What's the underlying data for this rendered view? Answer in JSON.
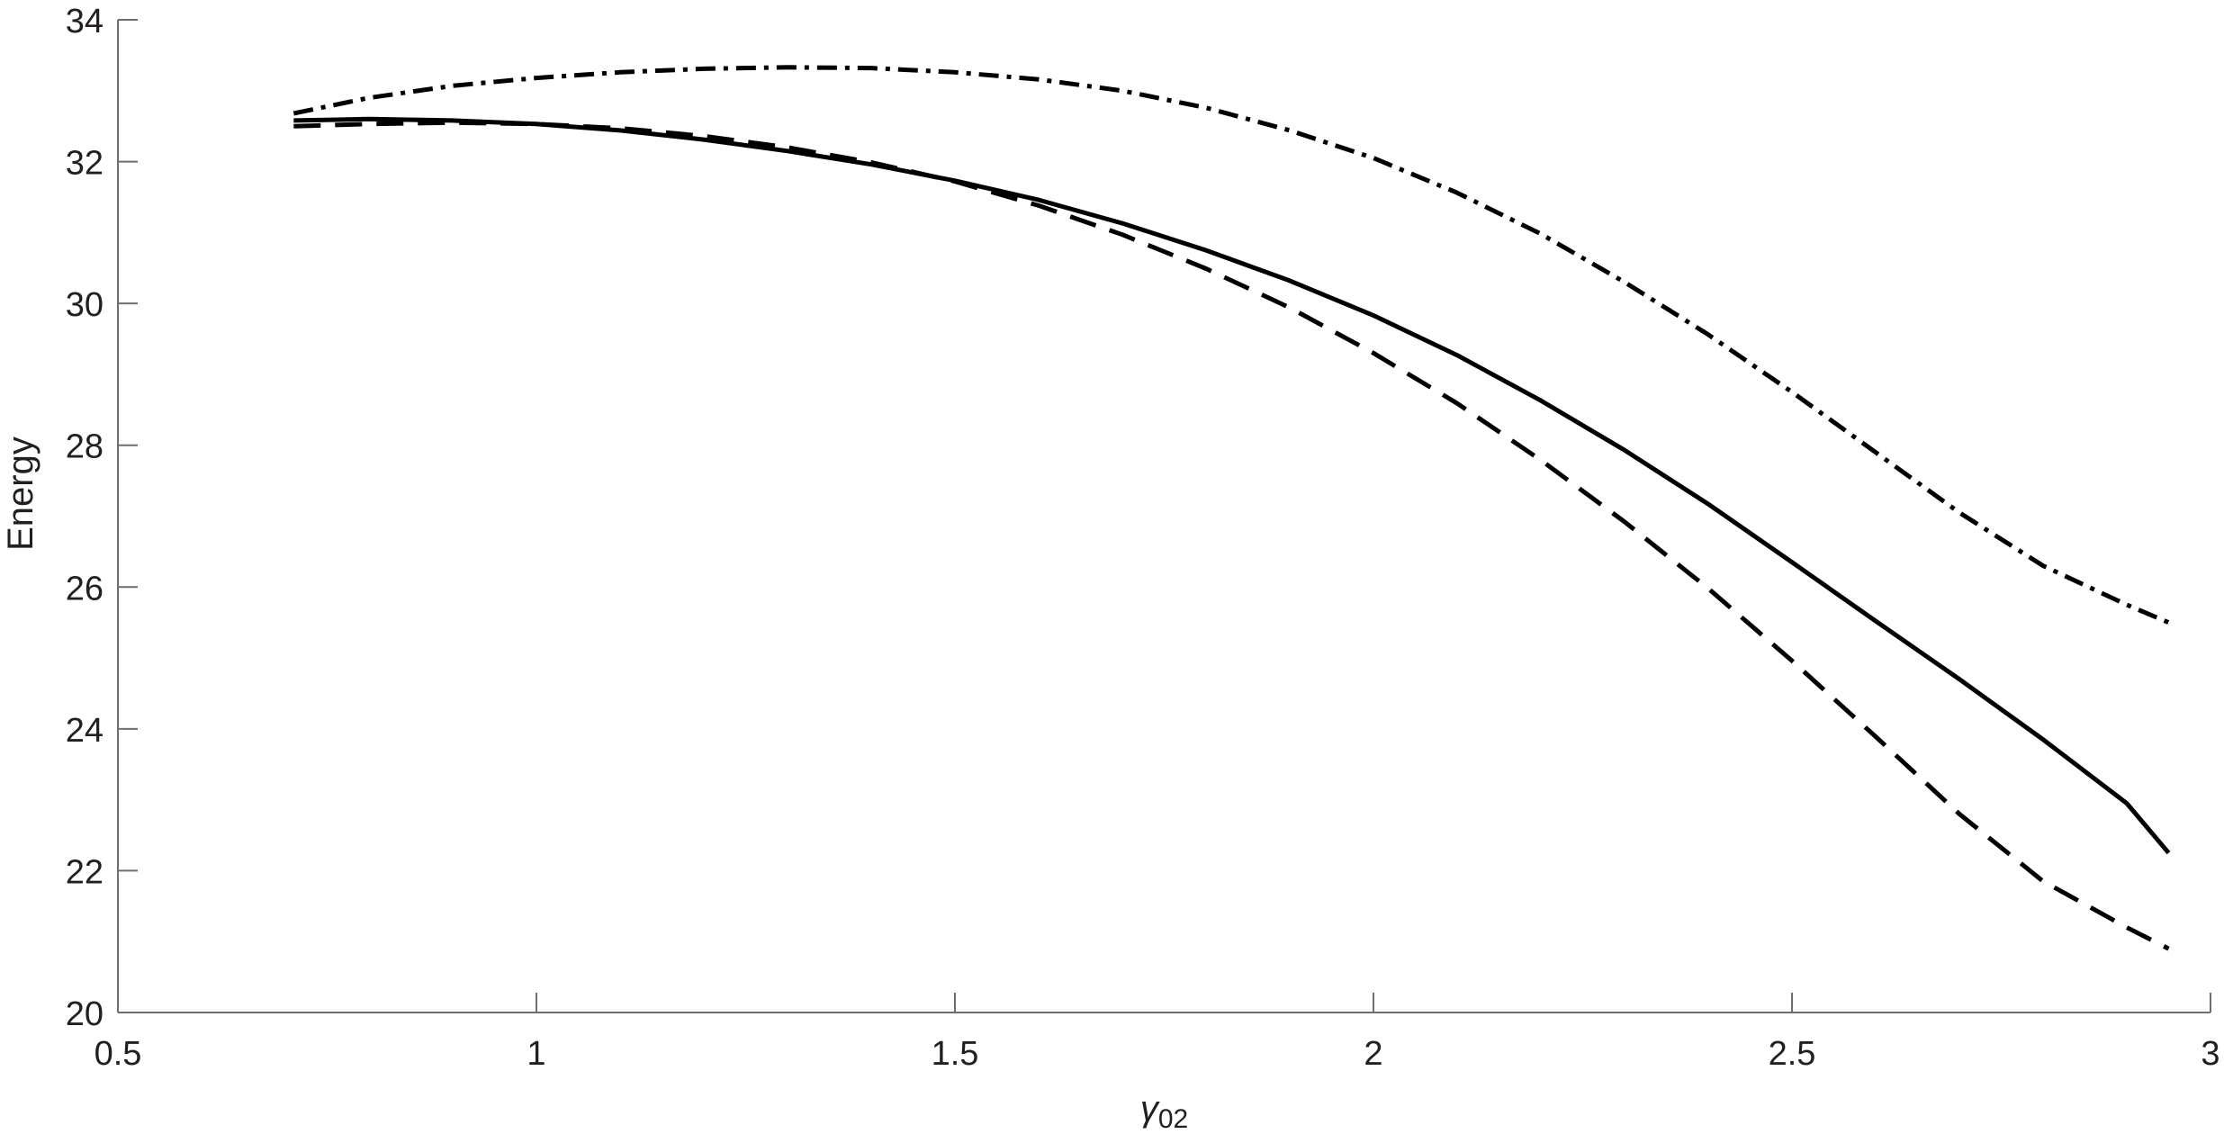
{
  "chart_data": {
    "type": "line",
    "xlabel": "γ",
    "xlabel_sub": "02",
    "ylabel": "Energy",
    "xlim": [
      0.5,
      3
    ],
    "ylim": [
      20,
      34
    ],
    "xticks": [
      "0.5",
      "1",
      "1.5",
      "2",
      "2.5",
      "3"
    ],
    "yticks": [
      "20",
      "22",
      "24",
      "26",
      "28",
      "30",
      "32",
      "34"
    ],
    "grid": false,
    "series": [
      {
        "style": "solid",
        "x": [
          0.71,
          0.8,
          0.9,
          1.0,
          1.1,
          1.2,
          1.3,
          1.4,
          1.5,
          1.6,
          1.7,
          1.8,
          1.9,
          2.0,
          2.1,
          2.2,
          2.3,
          2.4,
          2.5,
          2.6,
          2.7,
          2.8,
          2.9,
          2.95
        ],
        "y": [
          32.58,
          32.6,
          32.58,
          32.53,
          32.44,
          32.31,
          32.15,
          31.96,
          31.73,
          31.46,
          31.13,
          30.75,
          30.32,
          29.83,
          29.27,
          28.63,
          27.93,
          27.17,
          26.35,
          25.52,
          24.7,
          23.85,
          22.95,
          22.25
        ]
      },
      {
        "style": "dashed",
        "x": [
          0.71,
          0.8,
          0.9,
          1.0,
          1.1,
          1.2,
          1.3,
          1.4,
          1.5,
          1.6,
          1.7,
          1.8,
          1.9,
          2.0,
          2.1,
          2.2,
          2.3,
          2.4,
          2.5,
          2.6,
          2.7,
          2.8,
          2.9,
          2.95
        ],
        "y": [
          32.5,
          32.53,
          32.55,
          32.53,
          32.47,
          32.36,
          32.2,
          31.99,
          31.72,
          31.38,
          30.97,
          30.49,
          29.94,
          29.3,
          28.59,
          27.79,
          26.92,
          25.98,
          24.96,
          23.89,
          22.8,
          21.85,
          21.2,
          20.9
        ]
      },
      {
        "style": "dash-dot",
        "x": [
          0.71,
          0.8,
          0.9,
          1.0,
          1.1,
          1.2,
          1.3,
          1.4,
          1.5,
          1.6,
          1.7,
          1.8,
          1.9,
          2.0,
          2.1,
          2.2,
          2.3,
          2.4,
          2.5,
          2.6,
          2.7,
          2.8,
          2.9,
          2.95
        ],
        "y": [
          32.68,
          32.9,
          33.07,
          33.18,
          33.26,
          33.31,
          33.33,
          33.32,
          33.26,
          33.16,
          33.0,
          32.76,
          32.44,
          32.05,
          31.56,
          30.98,
          30.3,
          29.56,
          28.75,
          27.9,
          27.05,
          26.3,
          25.75,
          25.5
        ]
      }
    ]
  }
}
